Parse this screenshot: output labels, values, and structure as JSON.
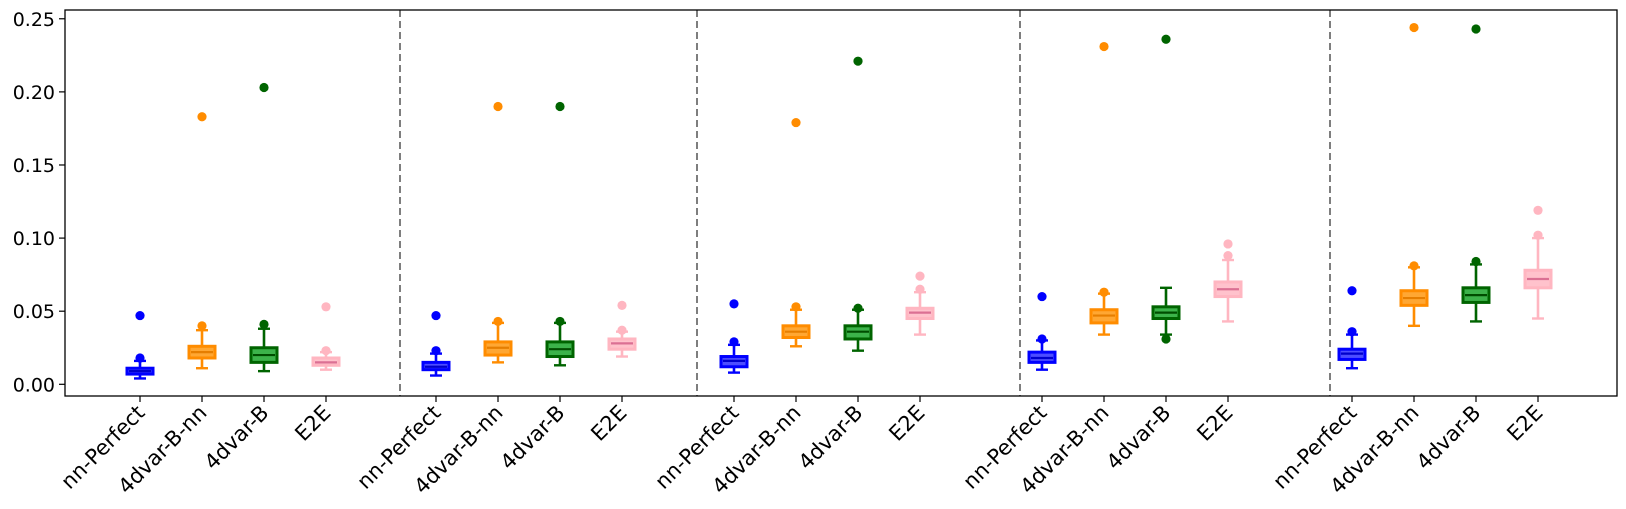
{
  "chart_data": {
    "type": "box",
    "title": "",
    "xlabel": "",
    "ylabel": "",
    "ylim": [
      -0.008,
      0.256
    ],
    "yticks": [
      0.0,
      0.05,
      0.1,
      0.15,
      0.2,
      0.25
    ],
    "ytick_labels": [
      "0.00",
      "0.05",
      "0.10",
      "0.15",
      "0.20",
      "0.25"
    ],
    "grid": false,
    "legend": "none",
    "separators": "dashed vertical lines between groups",
    "categories": [
      "nn-Perfect",
      "4dvar-B-nn",
      "4dvar-B",
      "E2E"
    ],
    "series_colors": {
      "nn-Perfect": {
        "edge": "#0000ff",
        "fill": "#4d4dff",
        "median": "#0000cc"
      },
      "4dvar-B-nn": {
        "edge": "#ff8c00",
        "fill": "#ffa733",
        "median": "#e67e00"
      },
      "4dvar-B": {
        "edge": "#006400",
        "fill": "#3cb34a",
        "median": "#004d00"
      },
      "E2E": {
        "edge": "#ffb6c1",
        "fill": "#ffc2cc",
        "median": "#db7093"
      }
    },
    "groups": [
      {
        "boxes": [
          {
            "label": "nn-Perfect",
            "whislo": 0.004,
            "q1": 0.007,
            "med": 0.009,
            "q3": 0.011,
            "whishi": 0.016,
            "fliers": [
              0.018,
              0.047
            ]
          },
          {
            "label": "4dvar-B-nn",
            "whislo": 0.011,
            "q1": 0.018,
            "med": 0.022,
            "q3": 0.026,
            "whishi": 0.037,
            "fliers": [
              0.04,
              0.183
            ]
          },
          {
            "label": "4dvar-B",
            "whislo": 0.009,
            "q1": 0.015,
            "med": 0.02,
            "q3": 0.025,
            "whishi": 0.038,
            "fliers": [
              0.041,
              0.203
            ]
          },
          {
            "label": "E2E",
            "whislo": 0.01,
            "q1": 0.013,
            "med": 0.015,
            "q3": 0.018,
            "whishi": 0.022,
            "fliers": [
              0.023,
              0.053
            ]
          }
        ]
      },
      {
        "boxes": [
          {
            "label": "nn-Perfect",
            "whislo": 0.006,
            "q1": 0.01,
            "med": 0.012,
            "q3": 0.015,
            "whishi": 0.021,
            "fliers": [
              0.023,
              0.047
            ]
          },
          {
            "label": "4dvar-B-nn",
            "whislo": 0.015,
            "q1": 0.02,
            "med": 0.025,
            "q3": 0.029,
            "whishi": 0.042,
            "fliers": [
              0.043,
              0.19
            ]
          },
          {
            "label": "4dvar-B",
            "whislo": 0.013,
            "q1": 0.019,
            "med": 0.024,
            "q3": 0.029,
            "whishi": 0.042,
            "fliers": [
              0.043,
              0.19
            ]
          },
          {
            "label": "E2E",
            "whislo": 0.019,
            "q1": 0.024,
            "med": 0.028,
            "q3": 0.031,
            "whishi": 0.036,
            "fliers": [
              0.037,
              0.054
            ]
          }
        ]
      },
      {
        "boxes": [
          {
            "label": "nn-Perfect",
            "whislo": 0.008,
            "q1": 0.012,
            "med": 0.016,
            "q3": 0.019,
            "whishi": 0.027,
            "fliers": [
              0.029,
              0.055
            ]
          },
          {
            "label": "4dvar-B-nn",
            "whislo": 0.026,
            "q1": 0.032,
            "med": 0.036,
            "q3": 0.04,
            "whishi": 0.051,
            "fliers": [
              0.053,
              0.179
            ]
          },
          {
            "label": "4dvar-B",
            "whislo": 0.023,
            "q1": 0.031,
            "med": 0.036,
            "q3": 0.04,
            "whishi": 0.051,
            "fliers": [
              0.052,
              0.221
            ]
          },
          {
            "label": "E2E",
            "whislo": 0.034,
            "q1": 0.045,
            "med": 0.049,
            "q3": 0.052,
            "whishi": 0.063,
            "fliers": [
              0.065,
              0.074
            ]
          }
        ]
      },
      {
        "boxes": [
          {
            "label": "nn-Perfect",
            "whislo": 0.01,
            "q1": 0.015,
            "med": 0.018,
            "q3": 0.022,
            "whishi": 0.03,
            "fliers": [
              0.031,
              0.06
            ]
          },
          {
            "label": "4dvar-B-nn",
            "whislo": 0.034,
            "q1": 0.042,
            "med": 0.047,
            "q3": 0.051,
            "whishi": 0.062,
            "fliers": [
              0.063,
              0.231
            ]
          },
          {
            "label": "4dvar-B",
            "whislo": 0.034,
            "q1": 0.045,
            "med": 0.049,
            "q3": 0.053,
            "whishi": 0.066,
            "fliers": [
              0.031,
              0.236
            ]
          },
          {
            "label": "E2E",
            "whislo": 0.043,
            "q1": 0.06,
            "med": 0.065,
            "q3": 0.07,
            "whishi": 0.085,
            "fliers": [
              0.088,
              0.096
            ]
          }
        ]
      },
      {
        "boxes": [
          {
            "label": "nn-Perfect",
            "whislo": 0.011,
            "q1": 0.017,
            "med": 0.021,
            "q3": 0.024,
            "whishi": 0.034,
            "fliers": [
              0.036,
              0.064
            ]
          },
          {
            "label": "4dvar-B-nn",
            "whislo": 0.04,
            "q1": 0.054,
            "med": 0.059,
            "q3": 0.064,
            "whishi": 0.08,
            "fliers": [
              0.081,
              0.244
            ]
          },
          {
            "label": "4dvar-B",
            "whislo": 0.043,
            "q1": 0.056,
            "med": 0.061,
            "q3": 0.066,
            "whishi": 0.082,
            "fliers": [
              0.084,
              0.243
            ]
          },
          {
            "label": "E2E",
            "whislo": 0.045,
            "q1": 0.066,
            "med": 0.072,
            "q3": 0.078,
            "whishi": 0.1,
            "fliers": [
              0.102,
              0.119
            ]
          }
        ]
      }
    ]
  }
}
